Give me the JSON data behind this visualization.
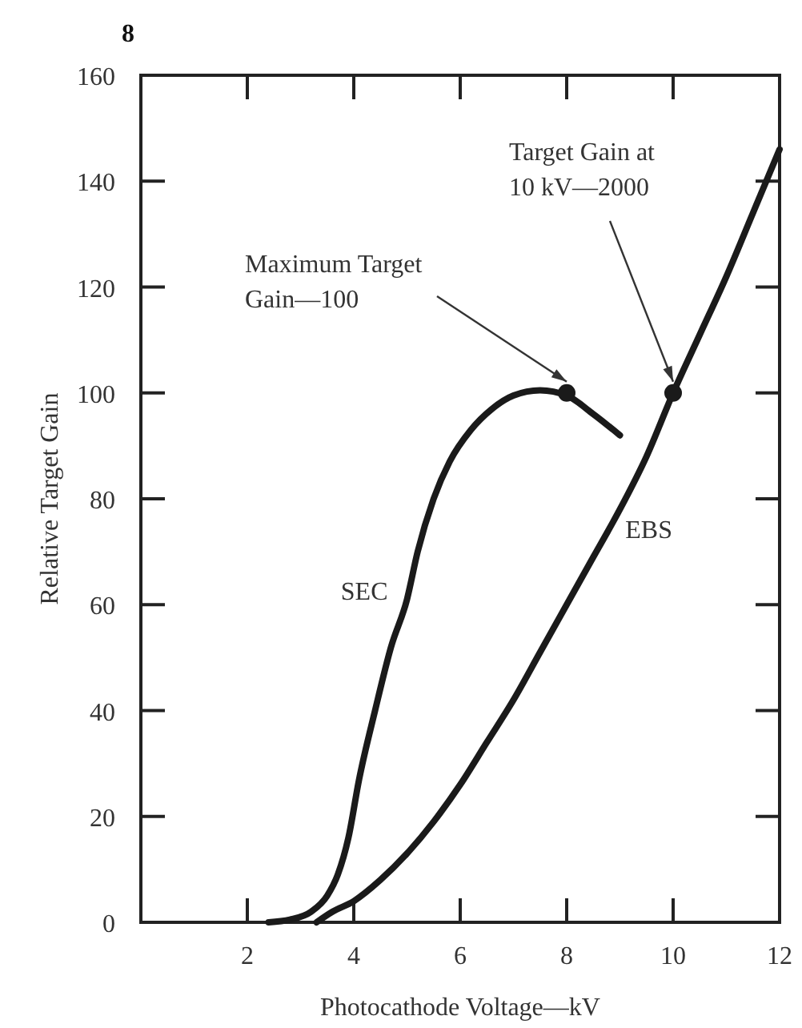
{
  "chart_data": {
    "type": "line",
    "xlabel": "Photocathode Voltage—kV",
    "ylabel": "Relative Target Gain",
    "xlim": [
      0,
      12
    ],
    "ylim": [
      0,
      160
    ],
    "xticks": [
      2,
      4,
      6,
      8,
      10,
      12
    ],
    "yticks": [
      0,
      20,
      40,
      60,
      80,
      100,
      120,
      140,
      160
    ],
    "grid": false,
    "marker": "none",
    "line_style": "solid",
    "series": [
      {
        "name": "SEC",
        "color": "#1a1a1a",
        "x": [
          2.4,
          2.8,
          3.2,
          3.5,
          3.7,
          3.9,
          4.1,
          4.4,
          4.7,
          5,
          5.2,
          5.5,
          5.8,
          6.2,
          6.6,
          7,
          7.5,
          8,
          8.5,
          9
        ],
        "values": [
          0,
          0.5,
          2,
          5,
          9,
          16,
          27,
          40,
          52,
          61,
          70,
          80,
          87,
          93,
          97,
          99.5,
          100.5,
          99.5,
          96,
          92
        ]
      },
      {
        "name": "EBS",
        "color": "#1a1a1a",
        "x": [
          3.3,
          3.6,
          4,
          4.5,
          5,
          5.5,
          6,
          6.5,
          7,
          7.5,
          8,
          8.5,
          9,
          9.5,
          10,
          10.5,
          11,
          11.5,
          12
        ],
        "values": [
          0,
          2,
          4,
          8,
          13,
          19,
          26,
          34,
          42,
          51,
          60,
          69,
          78,
          88,
          100,
          111,
          122,
          134,
          146
        ]
      },
      {
        "type": "scatter",
        "color": "#1a1a1a",
        "marker": "circle",
        "x": [
          8,
          10
        ],
        "values": [
          100,
          100
        ]
      }
    ],
    "annotations": [
      "8",
      {
        "text": "Maximum Target\nGain—100",
        "x": 8,
        "y": 100
      },
      {
        "text": "Target Gain at\n10 kV—2000",
        "x": 10,
        "y": 100
      }
    ]
  }
}
